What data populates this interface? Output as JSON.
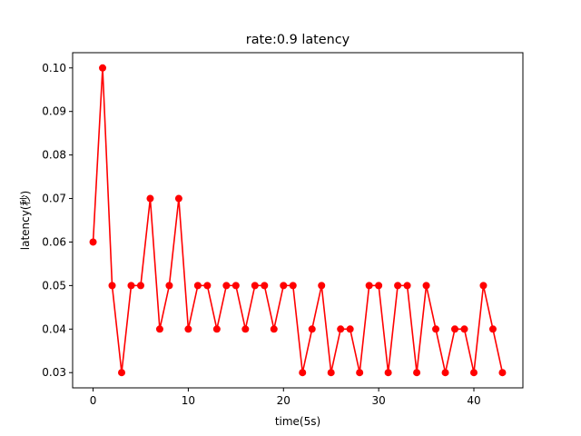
{
  "chart_data": {
    "type": "line",
    "title": "rate:0.9 latency",
    "xlabel": "time(5s)",
    "ylabel": "latency(秒)",
    "xlim": [
      -2.15,
      45.15
    ],
    "ylim": [
      0.0265,
      0.1035
    ],
    "x_ticks": [
      0,
      10,
      20,
      30,
      40
    ],
    "x_tick_labels": [
      "0",
      "10",
      "20",
      "30",
      "40"
    ],
    "y_ticks": [
      0.03,
      0.04,
      0.05,
      0.06,
      0.07,
      0.08,
      0.09,
      0.1
    ],
    "y_tick_labels": [
      "0.03",
      "0.04",
      "0.05",
      "0.06",
      "0.07",
      "0.08",
      "0.09",
      "0.10"
    ],
    "grid": false,
    "legend": "none",
    "series": [
      {
        "color": "#ff0000",
        "marker": "circle",
        "x": [
          0,
          1,
          2,
          3,
          4,
          5,
          6,
          7,
          8,
          9,
          10,
          11,
          12,
          13,
          14,
          15,
          16,
          17,
          18,
          19,
          20,
          21,
          22,
          23,
          24,
          25,
          26,
          27,
          28,
          29,
          30,
          31,
          32,
          33,
          34,
          35,
          36,
          37,
          38,
          39,
          40,
          41,
          42,
          43
        ],
        "values": [
          0.06,
          0.1,
          0.05,
          0.03,
          0.05,
          0.05,
          0.07,
          0.04,
          0.05,
          0.07,
          0.04,
          0.05,
          0.05,
          0.04,
          0.05,
          0.05,
          0.04,
          0.05,
          0.05,
          0.04,
          0.05,
          0.05,
          0.03,
          0.04,
          0.05,
          0.03,
          0.04,
          0.04,
          0.03,
          0.05,
          0.05,
          0.03,
          0.05,
          0.05,
          0.03,
          0.05,
          0.04,
          0.03,
          0.04,
          0.04,
          0.03,
          0.05,
          0.04,
          0.03
        ]
      }
    ]
  }
}
